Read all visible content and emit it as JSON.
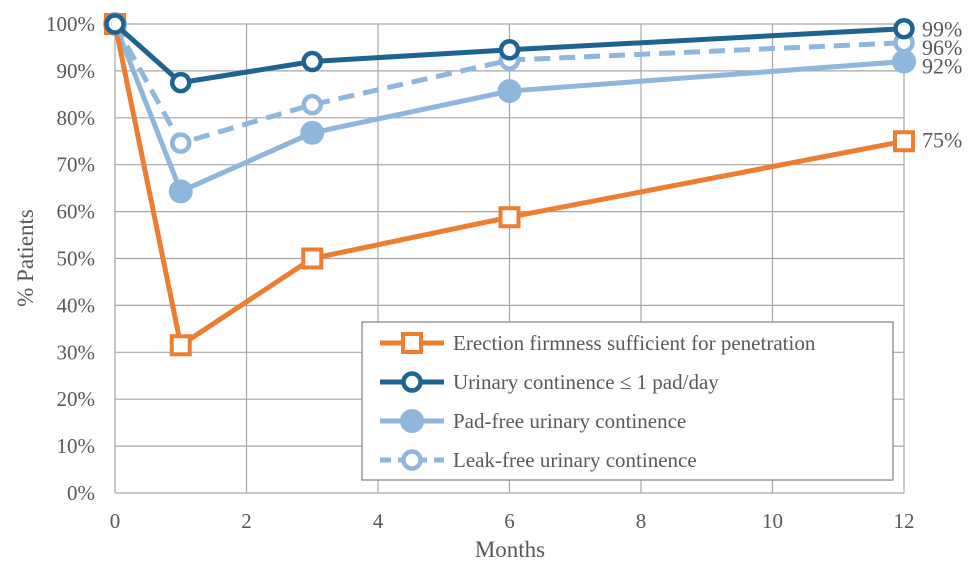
{
  "chart_data": {
    "type": "line",
    "xlabel": "Months",
    "ylabel": "% Patients",
    "xlim": [
      0,
      12
    ],
    "ylim": [
      0,
      100
    ],
    "x_ticks": [
      0,
      2,
      4,
      6,
      8,
      10,
      12
    ],
    "y_ticks": [
      "0%",
      "10%",
      "20%",
      "30%",
      "40%",
      "50%",
      "60%",
      "70%",
      "80%",
      "90%",
      "100%"
    ],
    "grid": true,
    "legend_position": "bottom-right",
    "series": [
      {
        "name": "Erection firmness sufficient for penetration",
        "x": [
          0,
          1,
          3,
          6,
          12
        ],
        "values": [
          100,
          31.5,
          50,
          58.8,
          75
        ],
        "color": "#ED7D31",
        "marker": "open-square",
        "line": "solid",
        "end_label": "75%"
      },
      {
        "name": "Urinary continence ≤ 1 pad/day",
        "x": [
          0,
          1,
          3,
          6,
          12
        ],
        "values": [
          100,
          87.5,
          92,
          94.5,
          99
        ],
        "color": "#1F6391",
        "marker": "open-circle",
        "line": "solid",
        "end_label": "99%"
      },
      {
        "name": "Pad-free urinary continence",
        "x": [
          0,
          1,
          3,
          6,
          12
        ],
        "values": [
          100,
          64.3,
          76.8,
          85.7,
          92
        ],
        "color": "#8FB6DD",
        "marker": "filled-circle",
        "line": "solid",
        "end_label": "92%"
      },
      {
        "name": "Leak-free urinary continence",
        "x": [
          0,
          1,
          3,
          6,
          12
        ],
        "values": [
          100,
          74.6,
          82.8,
          92.3,
          96
        ],
        "color": "#8FB6DD",
        "marker": "open-circle",
        "line": "dashed",
        "end_label": "96%"
      }
    ]
  }
}
